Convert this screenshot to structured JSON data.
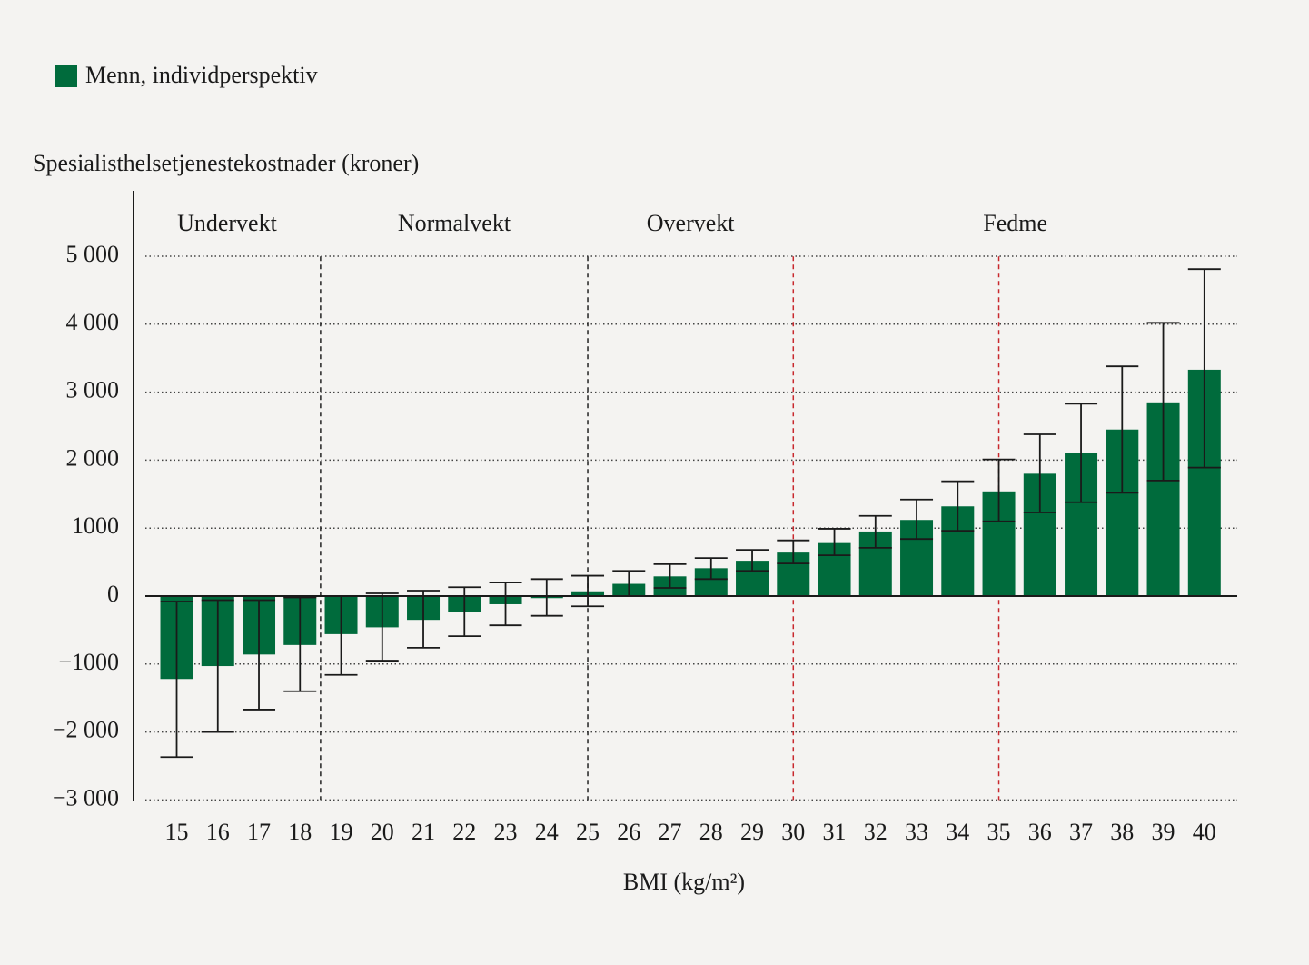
{
  "chart_data": {
    "type": "bar",
    "legend": "Menn, individperspektiv",
    "ylabel": "Spesialisthelsetjenestekostnader (kroner)",
    "xlabel": "BMI (kg/m²)",
    "color": "#006b3c",
    "x": [
      15,
      16,
      17,
      18,
      19,
      20,
      21,
      22,
      23,
      24,
      25,
      26,
      27,
      28,
      29,
      30,
      31,
      32,
      33,
      34,
      35,
      36,
      37,
      38,
      39,
      40
    ],
    "values": [
      -1220,
      -1030,
      -860,
      -720,
      -560,
      -460,
      -350,
      -230,
      -120,
      -30,
      70,
      180,
      290,
      410,
      520,
      640,
      780,
      950,
      1120,
      1320,
      1540,
      1800,
      2110,
      2450,
      2850,
      3330
    ],
    "ci_low": [
      -2370,
      -2000,
      -1670,
      -1400,
      -1160,
      -950,
      -760,
      -590,
      -430,
      -290,
      -150,
      0,
      120,
      250,
      370,
      480,
      600,
      710,
      840,
      960,
      1100,
      1230,
      1380,
      1520,
      1700,
      1890
    ],
    "ci_high": [
      -80,
      -60,
      -60,
      -20,
      0,
      40,
      80,
      130,
      200,
      250,
      300,
      370,
      470,
      560,
      680,
      820,
      990,
      1180,
      1420,
      1690,
      2010,
      2380,
      2830,
      3380,
      4020,
      4810
    ],
    "xlim": [
      13.95,
      40.8
    ],
    "xticks": [
      15,
      16,
      17,
      18,
      19,
      20,
      21,
      22,
      23,
      24,
      25,
      26,
      27,
      28,
      29,
      30,
      31,
      32,
      33,
      34,
      35,
      36,
      37,
      38,
      39,
      40
    ],
    "ylim": [
      -3000,
      6000
    ],
    "yticks": [
      {
        "value": 5000,
        "label": "5 000"
      },
      {
        "value": 4000,
        "label": "4 000"
      },
      {
        "value": 3000,
        "label": "3 000"
      },
      {
        "value": 2000,
        "label": "2 000"
      },
      {
        "value": 1000,
        "label": "1000"
      },
      0,
      {
        "value": -1000,
        "label": "−1000"
      },
      {
        "value": -2000,
        "label": "−2 000"
      },
      {
        "value": -3000,
        "label": "−3 000"
      }
    ],
    "grid": true,
    "dividers": [
      {
        "value": 18.5,
        "color": "#222222"
      },
      {
        "value": 25,
        "color": "#222222"
      },
      {
        "value": 30,
        "color": "#c8282d"
      },
      {
        "value": 35,
        "color": "#c8282d"
      }
    ],
    "regions": [
      "Undervekt",
      "Normalvekt",
      "Overvekt",
      "Fedme"
    ]
  }
}
